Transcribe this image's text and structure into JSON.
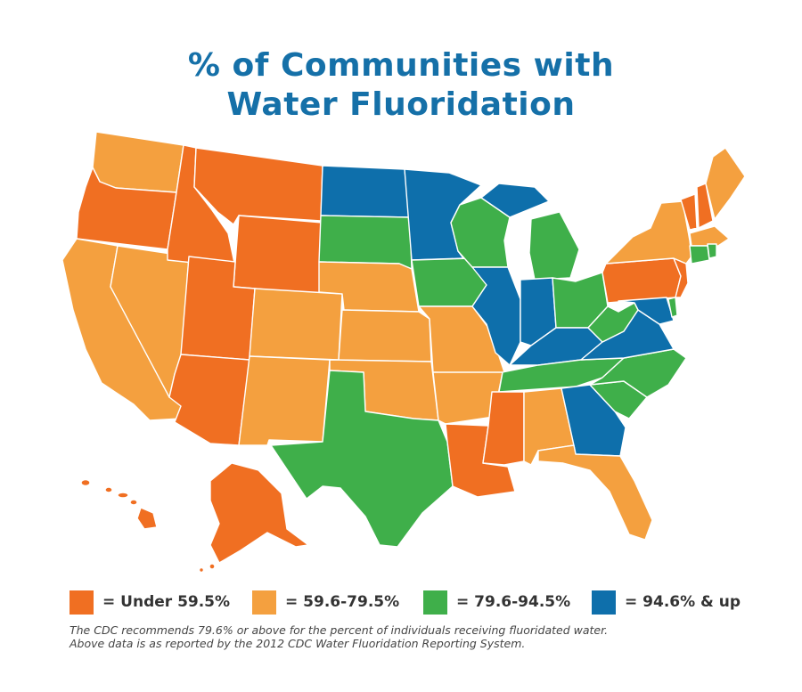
{
  "title": {
    "line1": "% of Communities with",
    "line2": "Water Fluoridation"
  },
  "colors": {
    "under_59_5": "#f06f22",
    "range_59_6_79_5": "#f4a03f",
    "range_79_6_94_5": "#3faf4a",
    "range_94_6_up": "#0e6fab"
  },
  "legend": [
    {
      "label": "= Under 59.5%",
      "color": "#f06f22"
    },
    {
      "label": "= 59.6-79.5%",
      "color": "#f4a03f"
    },
    {
      "label": "= 79.6-94.5%",
      "color": "#3faf4a"
    },
    {
      "label": "= 94.6% & up",
      "color": "#0e6fab"
    }
  ],
  "footnote": {
    "line1": "The CDC recommends 79.6% or above for the percent of individuals receiving fluoridated water.",
    "line2": "Above data is as reported by the 2012 CDC Water Fluoridation Reporting System."
  }
}
